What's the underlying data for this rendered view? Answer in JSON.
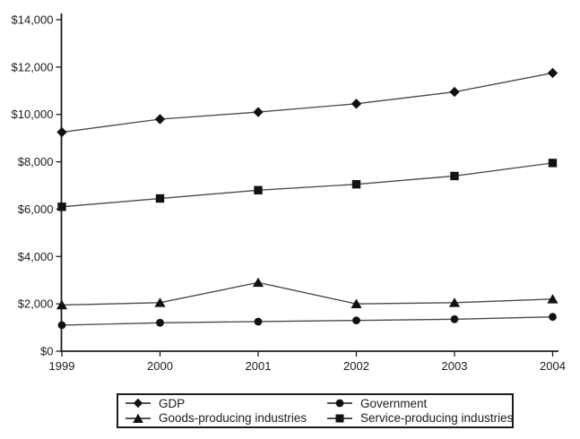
{
  "chart_data": {
    "type": "line",
    "title": "",
    "xlabel": "",
    "ylabel": "",
    "x_labels": [
      "1999",
      "2000",
      "2001",
      "2002",
      "2003",
      "2004"
    ],
    "ylim": [
      0,
      14000
    ],
    "y_tick_step": 2000,
    "y_tick_labels_top_down": [
      "$14,000",
      "$12,000",
      "$10,000",
      "$8,000",
      "$6,000",
      "$4,000",
      "$2,000",
      "$0"
    ],
    "grid": false,
    "legend_position": "bottom-center-boxed",
    "axis_color": "#1c1c1c",
    "line_color": "#4a4a4a",
    "marker_color": "#121212",
    "series": [
      {
        "name": "GDP",
        "marker": "diamond",
        "values": [
          9250,
          9800,
          10100,
          10450,
          10950,
          11750
        ]
      },
      {
        "name": "Government",
        "marker": "circle",
        "values": [
          1100,
          1200,
          1250,
          1300,
          1350,
          1450
        ]
      },
      {
        "name": "Goods-producing industries",
        "marker": "triangle",
        "values": [
          1950,
          2050,
          2900,
          2000,
          2050,
          2200
        ]
      },
      {
        "name": "Service-producing industries",
        "marker": "square",
        "values": [
          6100,
          6450,
          6800,
          7050,
          7400,
          7950
        ]
      }
    ]
  }
}
